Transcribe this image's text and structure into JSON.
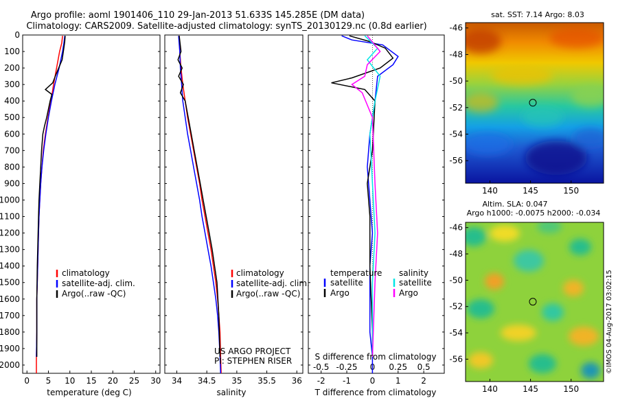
{
  "header": {
    "line1": "Argo profile: aoml 1901406_110 29-Jan-2013 51.633S 145.285E (DM data)",
    "line2": "Climatology: CARS2009. Satellite-adjusted climatology: synTS_20130129.nc (0.8d earlier)"
  },
  "depth_ticks": [
    0,
    100,
    200,
    300,
    400,
    500,
    600,
    700,
    800,
    900,
    1000,
    1100,
    1200,
    1300,
    1400,
    1500,
    1600,
    1700,
    1800,
    1900,
    2000
  ],
  "legend_profiles": [
    "climatology",
    "satellite-adj. clim.",
    "Argo(..raw -QC)"
  ],
  "legend_diff": {
    "temp_header": "temperature",
    "sal_header": "salinity",
    "satellite": "satellite",
    "argo": "Argo"
  },
  "credits": {
    "line1": "US ARGO PROJECT",
    "line2": "PI: STEPHEN RISER"
  },
  "colors": {
    "climatology": "#ff0000",
    "satellite": "#0000ff",
    "argo": "#000000",
    "s_sat": "#00e5e5",
    "s_argo": "#ff00ff"
  },
  "map_sst": {
    "title": "sat. SST: 7.14  Argo: 8.03",
    "lat_ticks": [
      "-46",
      "-48",
      "-50",
      "-52",
      "-54",
      "-56"
    ],
    "lon_ticks": [
      "140",
      "145",
      "150"
    ],
    "marker_lon": 145.285,
    "marker_lat": -51.633
  },
  "map_sla": {
    "title1": "Altim. SLA: 0.047",
    "title2": "Argo h1000: -0.0075 h2000: -0.034",
    "lat_ticks": [
      "-46",
      "-48",
      "-50",
      "-52",
      "-54",
      "-56"
    ],
    "lon_ticks": [
      "140",
      "145",
      "150"
    ]
  },
  "watermark": "©IMOS 04-Aug-2017 03:02:15",
  "chart_data": [
    {
      "type": "line",
      "xlabel": "temperature (deg C)",
      "ylabel": "",
      "xlim": [
        -1,
        31
      ],
      "ylim": [
        2050,
        0
      ],
      "xticks": [
        0,
        5,
        10,
        15,
        20,
        25,
        30
      ],
      "series": [
        {
          "name": "climatology",
          "color_key": "climatology",
          "x": [
            8.3,
            8.1,
            7.6,
            6.9,
            6.2,
            5.6,
            4.9,
            4.3,
            3.8,
            3.5,
            3.2,
            3.0,
            2.8,
            2.7,
            2.6,
            2.5,
            2.4,
            2.3,
            2.3,
            2.2,
            2.2
          ],
          "y": [
            5,
            50,
            100,
            200,
            300,
            400,
            500,
            600,
            700,
            800,
            900,
            1000,
            1100,
            1200,
            1300,
            1400,
            1500,
            1600,
            1800,
            1950,
            2050
          ]
        },
        {
          "name": "satellite-adj. clim.",
          "color_key": "satellite",
          "x": [
            8.8,
            8.6,
            8.3,
            7.5,
            6.5,
            5.7,
            5.0,
            4.4,
            3.9,
            3.5,
            3.2,
            3.0,
            2.8,
            2.7,
            2.6,
            2.5,
            2.4,
            2.3,
            2.3,
            2.2
          ],
          "y": [
            5,
            50,
            100,
            200,
            300,
            400,
            500,
            600,
            700,
            800,
            900,
            1000,
            1100,
            1200,
            1300,
            1400,
            1500,
            1600,
            1800,
            1950
          ]
        },
        {
          "name": "Argo(..raw -QC)",
          "color_key": "argo",
          "x": [
            8.9,
            8.8,
            8.6,
            8.2,
            7.4,
            6.6,
            6.0,
            4.3,
            5.8,
            5.4,
            5.0,
            4.6,
            4.1,
            3.7,
            3.4,
            3.2,
            3.0,
            2.8,
            2.7,
            2.6,
            2.5,
            2.4,
            2.3,
            2.3
          ],
          "y": [
            5,
            40,
            80,
            150,
            200,
            250,
            290,
            330,
            360,
            400,
            450,
            500,
            550,
            600,
            700,
            800,
            900,
            1000,
            1100,
            1200,
            1300,
            1400,
            1600,
            1950
          ]
        }
      ]
    },
    {
      "type": "line",
      "xlabel": "salinity",
      "ylabel": "",
      "xlim": [
        33.8,
        36.1
      ],
      "ylim": [
        2050,
        0
      ],
      "xticks": [
        34,
        34.5,
        35,
        35.5,
        36
      ],
      "series": [
        {
          "name": "climatology",
          "color_key": "climatology",
          "x": [
            34.04,
            34.05,
            34.07,
            34.1,
            34.14,
            34.18,
            34.23,
            34.28,
            34.33,
            34.38,
            34.42,
            34.47,
            34.52,
            34.57,
            34.61,
            34.65,
            34.68,
            34.7,
            34.72,
            34.73,
            34.74
          ],
          "y": [
            5,
            100,
            200,
            300,
            400,
            500,
            600,
            700,
            800,
            900,
            1000,
            1100,
            1200,
            1300,
            1400,
            1500,
            1600,
            1700,
            1800,
            1950,
            2050
          ]
        },
        {
          "name": "satellite-adj. clim.",
          "color_key": "satellite",
          "x": [
            34.03,
            34.05,
            34.06,
            34.08,
            34.1,
            34.14,
            34.18,
            34.23,
            34.28,
            34.33,
            34.38,
            34.42,
            34.47,
            34.52,
            34.57,
            34.61,
            34.65,
            34.68,
            34.7,
            34.72,
            34.73
          ],
          "y": [
            5,
            100,
            200,
            300,
            400,
            500,
            600,
            700,
            800,
            900,
            1000,
            1100,
            1200,
            1300,
            1400,
            1500,
            1600,
            1700,
            1800,
            1950,
            2050
          ]
        },
        {
          "name": "Argo(..raw -QC)",
          "color_key": "argo",
          "x": [
            34.04,
            34.07,
            34.02,
            34.09,
            34.03,
            34.11,
            34.06,
            34.14,
            34.19,
            34.24,
            34.29,
            34.34,
            34.39,
            34.44,
            34.49,
            34.54,
            34.59,
            34.63,
            34.67,
            34.7,
            34.72
          ],
          "y": [
            5,
            100,
            150,
            200,
            250,
            300,
            350,
            400,
            500,
            600,
            700,
            800,
            900,
            1000,
            1100,
            1200,
            1300,
            1400,
            1500,
            1700,
            1950
          ]
        }
      ]
    },
    {
      "type": "line",
      "xlabel": "T difference from climatology",
      "xlabel2": "S difference from climatology",
      "xlim": [
        -2.5,
        2.8
      ],
      "ylim": [
        2050,
        0
      ],
      "xticks_T": [
        -2,
        -1,
        0,
        1,
        2
      ],
      "xticks_S": [
        "-0.5",
        "-0.25",
        "0",
        "0.25",
        "0.5"
      ],
      "xticks_S_pos": [
        -2,
        -1,
        0,
        1,
        2
      ],
      "zero_line": 0,
      "series": [
        {
          "name": "temperature satellite",
          "color_key": "satellite",
          "x": [
            -1.2,
            -0.8,
            0.4,
            1.0,
            0.8,
            0.2,
            0.1,
            -0.1,
            -0.2,
            -0.1,
            0.0,
            -0.1,
            -0.1,
            -0.1,
            0.0,
            0.0
          ],
          "y": [
            5,
            30,
            60,
            130,
            180,
            250,
            400,
            600,
            800,
            1000,
            1200,
            1400,
            1600,
            1800,
            1950,
            2050
          ]
        },
        {
          "name": "temperature Argo",
          "color_key": "argo",
          "x": [
            -0.9,
            -0.1,
            0.5,
            0.8,
            0.3,
            -0.8,
            -1.6,
            -0.3,
            0.1,
            0.0,
            -0.2,
            -0.1,
            -0.1,
            0.0,
            0.0
          ],
          "y": [
            5,
            40,
            80,
            140,
            200,
            260,
            290,
            330,
            400,
            700,
            900,
            1100,
            1400,
            1800,
            1950
          ]
        },
        {
          "name": "salinity satellite",
          "color_key": "s_sat",
          "x": [
            -0.3,
            0.2,
            -0.2,
            0.3,
            0.1,
            -0.1,
            0.0,
            0.1,
            0.0,
            0.0,
            0.0
          ],
          "y": [
            5,
            80,
            150,
            250,
            400,
            600,
            900,
            1200,
            1500,
            1800,
            1950
          ]
        },
        {
          "name": "salinity Argo",
          "color_key": "s_argo",
          "x": [
            -0.2,
            0.3,
            -0.2,
            -0.3,
            -0.8,
            -0.4,
            0.0,
            0.1,
            0.2,
            0.1,
            0.0
          ],
          "y": [
            5,
            100,
            180,
            250,
            300,
            350,
            500,
            900,
            1200,
            1500,
            1950
          ]
        }
      ]
    }
  ]
}
